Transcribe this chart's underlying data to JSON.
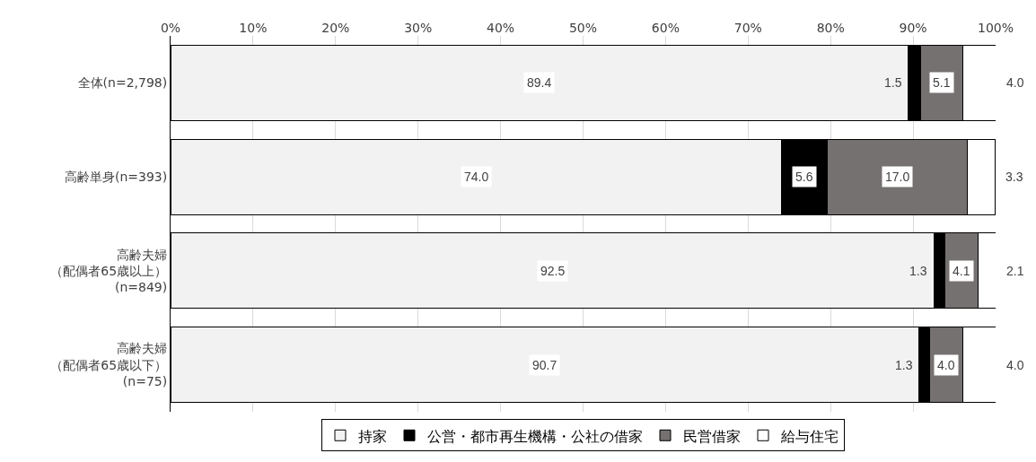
{
  "chart_data": {
    "type": "bar",
    "orientation": "horizontal",
    "stacked": true,
    "categories": [
      "全体(n=2,798)",
      "高齢単身(n=393)",
      "高齢夫婦（配偶者65歳以上）(n=849)",
      "高齢夫婦（配偶者65歳以下）(n=75)"
    ],
    "series": [
      {
        "name": "持家",
        "color": "#f2f2f2",
        "values": [
          89.4,
          74.0,
          92.5,
          90.7
        ],
        "value_labels": [
          "89.4",
          "74.0",
          "92.5",
          "90.7"
        ]
      },
      {
        "name": "公営・都市再生機構・公社の借家",
        "color": "#000000",
        "values": [
          1.5,
          5.6,
          1.3,
          1.3
        ],
        "value_labels": [
          "1.5",
          "5.6",
          "1.3",
          "1.3"
        ]
      },
      {
        "name": "民営借家",
        "color": "#767171",
        "values": [
          5.1,
          17.0,
          4.1,
          4.0
        ],
        "value_labels": [
          "5.1",
          "17.0",
          "4.1",
          "4.0"
        ]
      },
      {
        "name": "給与住宅",
        "color": "#ffffff",
        "values": [
          4.0,
          3.3,
          2.1,
          4.0
        ],
        "value_labels": [
          "4.0",
          "3.3",
          "2.1",
          "4.0"
        ]
      }
    ],
    "xlim": [
      0,
      100
    ],
    "xticks": [
      {
        "value": 0,
        "label": "0%"
      },
      {
        "value": 10,
        "label": "10%"
      },
      {
        "value": 20,
        "label": "20%"
      },
      {
        "value": 30,
        "label": "30%"
      },
      {
        "value": 40,
        "label": "40%"
      },
      {
        "value": 50,
        "label": "50%"
      },
      {
        "value": 60,
        "label": "60%"
      },
      {
        "value": 70,
        "label": "70%"
      },
      {
        "value": 80,
        "label": "80%"
      },
      {
        "value": 90,
        "label": "90%"
      },
      {
        "value": 100,
        "label": "100%"
      }
    ],
    "grid": "x",
    "legend": "bottom"
  }
}
